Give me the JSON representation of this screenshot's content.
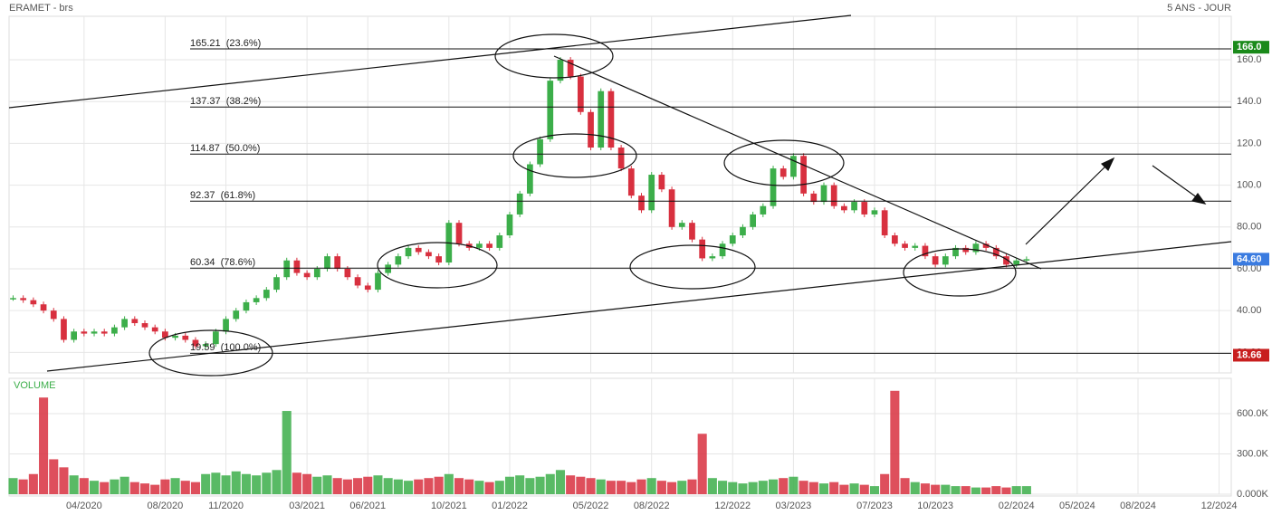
{
  "chart_data": {
    "type": "candlestick",
    "title": "ERAMET - brs",
    "subtitle": "5 ANS - JOUR",
    "up_color": "#3cae4a",
    "down_color": "#d8303f",
    "values": [
      46,
      45,
      43,
      40,
      36,
      26,
      30,
      29,
      30,
      29,
      32,
      36,
      34,
      32,
      30,
      27,
      28,
      26,
      23,
      24,
      30,
      36,
      40,
      44,
      46,
      50,
      56,
      64,
      58,
      56,
      60,
      66,
      60,
      56,
      52,
      50,
      58,
      62,
      66,
      70,
      68,
      66,
      63,
      82,
      72,
      70,
      72,
      70,
      76,
      86,
      96,
      110,
      122,
      150,
      160,
      152,
      135,
      118,
      145,
      118,
      108,
      95,
      88,
      105,
      98,
      80,
      82,
      74,
      65,
      66,
      72,
      76,
      80,
      86,
      90,
      108,
      104,
      114,
      96,
      92,
      100,
      90,
      88,
      92,
      86,
      88,
      76,
      72,
      70,
      71,
      66,
      62,
      66,
      70,
      68,
      72,
      70,
      66,
      62,
      64,
      64.6
    ],
    "xlim": [
      -0.4,
      120.2
    ],
    "xticks": [
      {
        "value": 7,
        "label": "04/2020"
      },
      {
        "value": 15,
        "label": "08/2020"
      },
      {
        "value": 21,
        "label": "11/2020"
      },
      {
        "value": 29,
        "label": "03/2021"
      },
      {
        "value": 35,
        "label": "06/2021"
      },
      {
        "value": 43,
        "label": "10/2021"
      },
      {
        "value": 49,
        "label": "01/2022"
      },
      {
        "value": 57,
        "label": "05/2022"
      },
      {
        "value": 63,
        "label": "08/2022"
      },
      {
        "value": 71,
        "label": "12/2022"
      },
      {
        "value": 77,
        "label": "03/2023"
      },
      {
        "value": 85,
        "label": "07/2023"
      },
      {
        "value": 91,
        "label": "10/2023"
      },
      {
        "value": 99,
        "label": "02/2024"
      },
      {
        "value": 105,
        "label": "05/2024"
      },
      {
        "value": 111,
        "label": "08/2024"
      },
      {
        "value": 119,
        "label": "12/2024"
      }
    ],
    "ylim": [
      10.2,
      180.8
    ],
    "yticks": [
      {
        "value": 160,
        "label": "160.0"
      },
      {
        "value": 140,
        "label": "140.0"
      },
      {
        "value": 120,
        "label": "120.0"
      },
      {
        "value": 100,
        "label": "100.0"
      },
      {
        "value": 80,
        "label": "80.00"
      },
      {
        "value": 60,
        "label": "60.00"
      },
      {
        "value": 40,
        "label": "40.00"
      },
      {
        "value": 20,
        "label": "20.00"
      }
    ],
    "grid": true,
    "levels": [
      {
        "value": 165.21,
        "label": "165.21  (23.6%)"
      },
      {
        "value": 137.37,
        "label": "137.37  (38.2%)"
      },
      {
        "value": 114.87,
        "label": "114.87  (50.0%)"
      },
      {
        "value": 92.37,
        "label": "92.37  (61.8%)"
      },
      {
        "value": 60.34,
        "label": "60.34  (78.6%)"
      },
      {
        "value": 19.59,
        "label": "19.59  (100.0%)"
      }
    ],
    "markers": [
      {
        "value": 166.0,
        "label": "166.0",
        "color": "#1a8a1a"
      },
      {
        "value": 64.6,
        "label": "64.60",
        "color": "#3a7be0"
      },
      {
        "value": 18.66,
        "label": "18.66",
        "color": "#c81e1e"
      }
    ],
    "volume": {
      "label": "VOLUME",
      "values": [
        120000,
        110000,
        150000,
        720000,
        260000,
        200000,
        140000,
        120000,
        100000,
        90000,
        110000,
        130000,
        90000,
        80000,
        70000,
        110000,
        120000,
        100000,
        90000,
        150000,
        160000,
        140000,
        170000,
        150000,
        140000,
        160000,
        180000,
        620000,
        160000,
        150000,
        130000,
        140000,
        120000,
        110000,
        120000,
        130000,
        140000,
        120000,
        110000,
        100000,
        110000,
        120000,
        130000,
        150000,
        120000,
        110000,
        100000,
        90000,
        100000,
        130000,
        140000,
        120000,
        130000,
        150000,
        180000,
        140000,
        130000,
        120000,
        110000,
        100000,
        100000,
        90000,
        110000,
        120000,
        100000,
        90000,
        100000,
        110000,
        450000,
        120000,
        100000,
        90000,
        80000,
        90000,
        100000,
        110000,
        120000,
        130000,
        100000,
        90000,
        80000,
        90000,
        70000,
        80000,
        70000,
        60000,
        150000,
        770000,
        120000,
        90000,
        80000,
        70000,
        70000,
        60000,
        60000,
        50000,
        50000,
        60000,
        50000,
        60000,
        60000
      ],
      "ylim": [
        0,
        863000
      ],
      "yticks": [
        {
          "value": 600000,
          "label": "600.0K"
        },
        {
          "value": 300000,
          "label": "300.0K"
        },
        {
          "value": 0,
          "label": "0.000K"
        }
      ]
    }
  }
}
